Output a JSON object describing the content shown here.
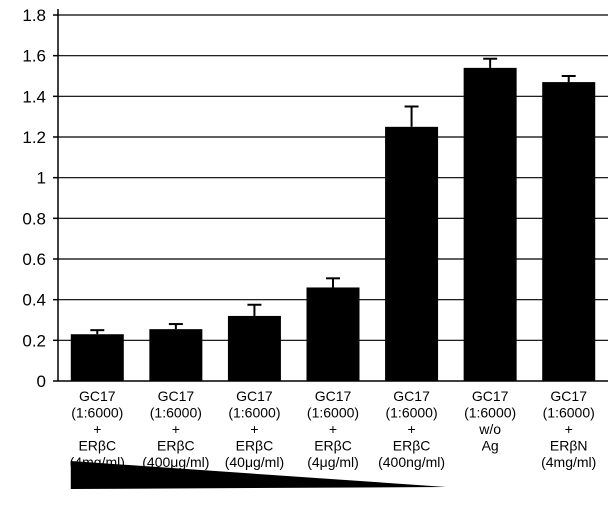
{
  "chart_data": {
    "type": "bar",
    "title": "",
    "xlabel": "",
    "ylabel": "",
    "ylim": [
      0,
      1.8
    ],
    "yticks": [
      {
        "value": 0,
        "label": "0"
      },
      {
        "value": 0.2,
        "label": "0.2"
      },
      {
        "value": 0.4,
        "label": "0.4"
      },
      {
        "value": 0.6,
        "label": "0.6"
      },
      {
        "value": 0.8,
        "label": "0.8"
      },
      {
        "value": 1.0,
        "label": "1"
      },
      {
        "value": 1.2,
        "label": "1.2"
      },
      {
        "value": 1.4,
        "label": "1.4"
      },
      {
        "value": 1.6,
        "label": "1.6"
      },
      {
        "value": 1.8,
        "label": "1.8"
      }
    ],
    "grid": true,
    "bar_color": "#000000",
    "categories": [
      [
        "GC17",
        "(1:6000)",
        "+",
        "ERβC",
        "(4mg/ml)"
      ],
      [
        "GC17",
        "(1:6000)",
        "+",
        "ERβC",
        "(400μg/ml)"
      ],
      [
        "GC17",
        "(1:6000)",
        "+",
        "ERβC",
        "(40μg/ml)"
      ],
      [
        "GC17",
        "(1:6000)",
        "+",
        "ERβC",
        "(4μg/ml)"
      ],
      [
        "GC17",
        "(1:6000)",
        "+",
        "ERβC",
        "(400ng/ml)"
      ],
      [
        "GC17",
        "(1:6000)",
        "w/o",
        "Ag"
      ],
      [
        "GC17",
        "(1:6000)",
        "+",
        "ERβN",
        "(4mg/ml)"
      ]
    ],
    "values": [
      0.23,
      0.255,
      0.32,
      0.46,
      1.25,
      1.54,
      1.47
    ],
    "errors": [
      0.02,
      0.025,
      0.055,
      0.045,
      0.1,
      0.045,
      0.03
    ],
    "wedge": {
      "direction": "decreasing",
      "color": "#000000"
    }
  }
}
